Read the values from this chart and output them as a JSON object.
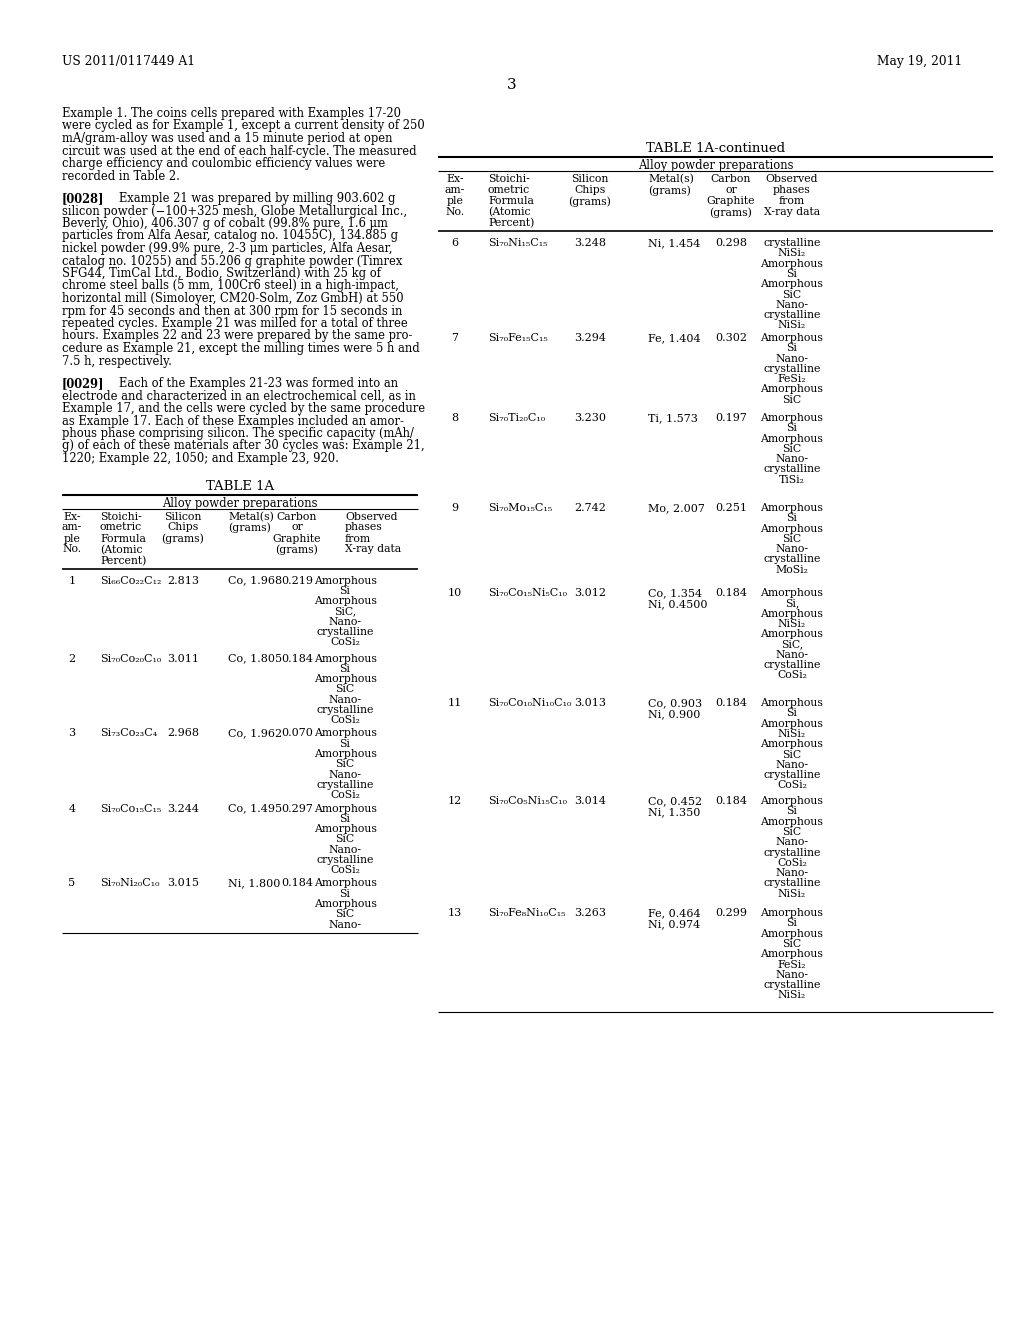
{
  "header_left": "US 2011/0117449 A1",
  "header_right": "May 19, 2011",
  "page_number": "3",
  "para0_lines": [
    "Example 1. The coins cells prepared with Examples 17-20",
    "were cycled as for Example 1, except a current density of 250",
    "mA/gram-alloy was used and a 15 minute period at open",
    "circuit was used at the end of each half-cycle. The measured",
    "charge efficiency and coulombic efficiency values were",
    "recorded in Table 2."
  ],
  "para1_tag": "[0028]",
  "para1_lines": [
    "   Example 21 was prepared by milling 903.602 g",
    "silicon powder (−100+325 mesh, Globe Metallurgical Inc.,",
    "Beverly, Ohio), 406.307 g of cobalt (99.8% pure, 1.6 μm",
    "particles from Alfa Aesar, catalog no. 10455C), 134.885 g",
    "nickel powder (99.9% pure, 2-3 μm particles, Alfa Aesar,",
    "catalog no. 10255) and 55.206 g graphite powder (Timrex",
    "SFG44, TimCal Ltd., Bodio, Switzerland) with 25 kg of",
    "chrome steel balls (5 mm, 100Cr6 steel) in a high-impact,",
    "horizontal mill (Simoloyer, CM20-Solm, Zoz GmbH) at 550",
    "rpm for 45 seconds and then at 300 rpm for 15 seconds in",
    "repeated cycles. Example 21 was milled for a total of three",
    "hours. Examples 22 and 23 were prepared by the same pro-",
    "cedure as Example 21, except the milling times were 5 h and",
    "7.5 h, respectively."
  ],
  "para2_tag": "[0029]",
  "para2_lines": [
    "   Each of the Examples 21-23 was formed into an",
    "electrode and characterized in an electrochemical cell, as in",
    "Example 17, and the cells were cycled by the same procedure",
    "as Example 17. Each of these Examples included an amor-",
    "phous phase comprising silicon. The specific capacity (mAh/",
    "g) of each of these materials after 30 cycles was: Example 21,",
    "1220; Example 22, 1050; and Example 23, 920."
  ],
  "left_col_headers": [
    [
      "Ex-",
      "am-",
      "ple",
      "No."
    ],
    [
      "Stoichi-",
      "ometric",
      "Formula",
      "(Atomic",
      "Percent)"
    ],
    [
      "Silicon",
      "Chips",
      "(grams)"
    ],
    [
      "Metal(s)",
      "(grams)"
    ],
    [
      "Carbon",
      "or",
      "Graphite",
      "(grams)"
    ],
    [
      "Observed",
      "phases",
      "from",
      "X-ray data"
    ]
  ],
  "left_rows": [
    {
      "ex": "1",
      "formula": "Si₆₆Co₂₂C₁₂",
      "si": "2.813",
      "met": "Co, 1.968",
      "carb": "0.219",
      "ph": [
        "Amorphous",
        "Si",
        "Amorphous",
        "SiC,",
        "Nano-",
        "crystalline",
        "CoSi₂"
      ]
    },
    {
      "ex": "2",
      "formula": "Si₇₀Co₂₀C₁₀",
      "si": "3.011",
      "met": "Co, 1.805",
      "carb": "0.184",
      "ph": [
        "Amorphous",
        "Si",
        "Amorphous",
        "SiC",
        "Nano-",
        "crystalline",
        "CoSi₂"
      ]
    },
    {
      "ex": "3",
      "formula": "Si₇₃Co₂₃C₄",
      "si": "2.968",
      "met": "Co, 1.962",
      "carb": "0.070",
      "ph": [
        "Amorphous",
        "Si",
        "Amorphous",
        "SiC",
        "Nano-",
        "crystalline",
        "CoSi₂"
      ]
    },
    {
      "ex": "4",
      "formula": "Si₇₀Co₁₅C₁₅",
      "si": "3.244",
      "met": "Co, 1.495",
      "carb": "0.297",
      "ph": [
        "Amorphous",
        "Si",
        "Amorphous",
        "SiC",
        "Nano-",
        "crystalline",
        "CoSi₂"
      ]
    },
    {
      "ex": "5",
      "formula": "Si₇₀Ni₂₀C₁₀",
      "si": "3.015",
      "met": "Ni, 1.800",
      "carb": "0.184",
      "ph": [
        "Amorphous",
        "Si",
        "Amorphous",
        "SiC",
        "Nano-"
      ]
    }
  ],
  "right_col_headers": [
    [
      "Ex-",
      "am-",
      "ple",
      "No."
    ],
    [
      "Stoichi-",
      "ometric",
      "Formula",
      "(Atomic",
      "Percent)"
    ],
    [
      "Silicon",
      "Chips",
      "(grams)"
    ],
    [
      "Metal(s)",
      "(grams)"
    ],
    [
      "Carbon",
      "or",
      "Graphite",
      "(grams)"
    ],
    [
      "Observed",
      "phases",
      "from",
      "X-ray data"
    ]
  ],
  "right_rows": [
    {
      "ex": "6",
      "formula": "Si₇₀Ni₁₅C₁₅",
      "si": "3.248",
      "met": [
        "Ni, 1.454"
      ],
      "carb": "0.298",
      "ph": [
        "crystalline",
        "NiSi₂",
        "Amorphous",
        "Si",
        "Amorphous",
        "SiC",
        "Nano-",
        "crystalline",
        "NiSi₂"
      ]
    },
    {
      "ex": "7",
      "formula": "Si₇₀Fe₁₅C₁₅",
      "si": "3.294",
      "met": [
        "Fe, 1.404"
      ],
      "carb": "0.302",
      "ph": [
        "Amorphous",
        "Si",
        "Nano-",
        "crystalline",
        "FeSi₂",
        "Amorphous",
        "SiC"
      ]
    },
    {
      "ex": "8",
      "formula": "Si₇₀Ti₂₀C₁₀",
      "si": "3.230",
      "met": [
        "Ti, 1.573"
      ],
      "carb": "0.197",
      "ph": [
        "Amorphous",
        "Si",
        "Amorphous",
        "SiC",
        "Nano-",
        "crystalline",
        "TiSi₂"
      ]
    },
    {
      "ex": "9",
      "formula": "Si₇₀Mo₁₅C₁₅",
      "si": "2.742",
      "met": [
        "Mo, 2.007"
      ],
      "carb": "0.251",
      "ph": [
        "Amorphous",
        "Si",
        "Amorphous",
        "SiC",
        "Nano-",
        "crystalline",
        "MoSi₂"
      ]
    },
    {
      "ex": "10",
      "formula": "Si₇₀Co₁₅Ni₅C₁₀",
      "si": "3.012",
      "met": [
        "Co, 1.354",
        "Ni, 0.4500"
      ],
      "carb": "0.184",
      "ph": [
        "Amorphous",
        "Si,",
        "Amorphous",
        "NiSi₂",
        "Amorphous",
        "SiC,",
        "Nano-",
        "crystalline",
        "CoSi₂"
      ]
    },
    {
      "ex": "11",
      "formula": "Si₇₀Co₁₀Ni₁₀C₁₀",
      "si": "3.013",
      "met": [
        "Co, 0.903",
        "Ni, 0.900"
      ],
      "carb": "0.184",
      "ph": [
        "Amorphous",
        "Si",
        "Amorphous",
        "NiSi₂",
        "Amorphous",
        "SiC",
        "Nano-",
        "crystalline",
        "CoSi₂"
      ]
    },
    {
      "ex": "12",
      "formula": "Si₇₀Co₅Ni₁₅C₁₀",
      "si": "3.014",
      "met": [
        "Co, 0.452",
        "Ni, 1.350"
      ],
      "carb": "0.184",
      "ph": [
        "Amorphous",
        "Si",
        "Amorphous",
        "SiC",
        "Nano-",
        "crystalline",
        "CoSi₂",
        "Nano-",
        "crystalline",
        "NiSi₂"
      ]
    },
    {
      "ex": "13",
      "formula": "Si₇₀Fe₈Ni₁₀C₁₅",
      "si": "3.263",
      "met": [
        "Fe, 0.464",
        "Ni, 0.974"
      ],
      "carb": "0.299",
      "ph": [
        "Amorphous",
        "Si",
        "Amorphous",
        "SiC",
        "Amorphous",
        "FeSi₂",
        "Nano-",
        "crystalline",
        "NiSi₂"
      ]
    }
  ]
}
